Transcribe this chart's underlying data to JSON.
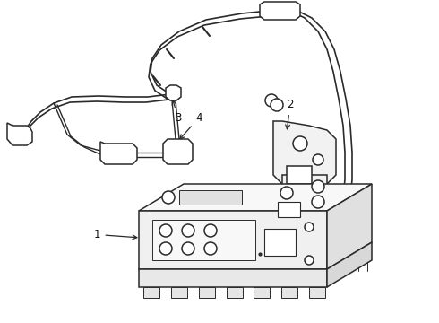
{
  "background_color": "#ffffff",
  "line_color": "#2a2a2a",
  "line_width": 1.1,
  "label_fontsize": 8.5,
  "fig_w": 4.9,
  "fig_h": 3.6,
  "dpi": 100
}
